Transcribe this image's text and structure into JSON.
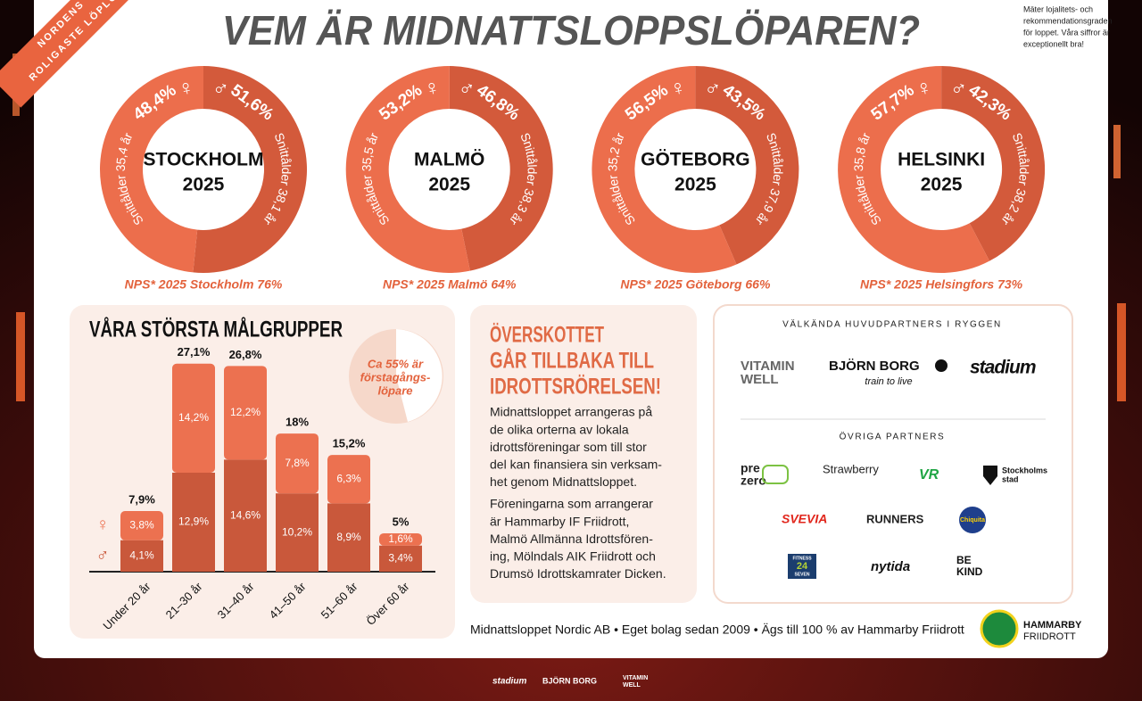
{
  "ribbon": [
    "NORDENS",
    "ROLIGASTE LÖPLO"
  ],
  "header": {
    "title": "VEM ÄR MIDNATTSLOPPSLÖPAREN?",
    "note": [
      "Mäter lojalitets- och",
      "rekommendationsgraden",
      "för loppet. Våra siffror är",
      "exceptionellt bra!"
    ]
  },
  "chart_data": [
    {
      "type": "donut",
      "title": "STOCKHOLM",
      "subtitle": "2025",
      "categories": [
        "♀",
        "♂"
      ],
      "values": [
        48.4,
        51.6
      ],
      "value_labels": [
        "48,4%",
        "51,6%"
      ],
      "colors": [
        "#ec6e4c",
        "#d35a3b"
      ],
      "annotations": [
        "Snittålder 35,4 år",
        "Snittålder 38,1 år"
      ],
      "caption": "NPS* 2025 Stockholm 76%"
    },
    {
      "type": "donut",
      "title": "MALMÖ",
      "subtitle": "2025",
      "categories": [
        "♀",
        "♂"
      ],
      "values": [
        53.2,
        46.8
      ],
      "value_labels": [
        "53,2%",
        "46,8%"
      ],
      "colors": [
        "#ec6e4c",
        "#d35a3b"
      ],
      "annotations": [
        "Snittålder 35,5 år",
        "Snittålder 38,3 år"
      ],
      "caption": "NPS* 2025 Malmö 64%"
    },
    {
      "type": "donut",
      "title": "GÖTEBORG",
      "subtitle": "2025",
      "categories": [
        "♀",
        "♂"
      ],
      "values": [
        56.5,
        43.5
      ],
      "value_labels": [
        "56,5%",
        "43,5%"
      ],
      "colors": [
        "#ec6e4c",
        "#d35a3b"
      ],
      "annotations": [
        "Snittålder 35,2 år",
        "Snittålder 37,9 år"
      ],
      "caption": "NPS* 2025 Göteborg 66%"
    },
    {
      "type": "donut",
      "title": "HELSINKI",
      "subtitle": "2025",
      "categories": [
        "♀",
        "♂"
      ],
      "values": [
        57.7,
        42.3
      ],
      "value_labels": [
        "57,7%",
        "42,3%"
      ],
      "colors": [
        "#ec6e4c",
        "#d35a3b"
      ],
      "annotations": [
        "Snittålder 35,8 år",
        "Snittålder 38,2 år"
      ],
      "caption": "NPS* 2025 Helsingfors 73%"
    },
    {
      "type": "stacked-bar",
      "title": "VÅRA STÖRSTA MÅLGRUPPER",
      "categories": [
        "Under 20 år",
        "21–30 år",
        "31–40 år",
        "41–50 år",
        "51–60 år",
        "Över 60 år"
      ],
      "series": [
        {
          "name": "♂",
          "color": "#c9583b",
          "values": [
            4.1,
            12.9,
            14.6,
            10.2,
            8.9,
            3.4
          ],
          "value_labels": [
            "4,1%",
            "12,9%",
            "14,6%",
            "10,2%",
            "8,9%",
            "3,4%"
          ]
        },
        {
          "name": "♀",
          "color": "#ec7150",
          "values": [
            3.8,
            14.2,
            12.2,
            7.8,
            6.3,
            1.6
          ],
          "value_labels": [
            "3,8%",
            "14,2%",
            "12,2%",
            "7,8%",
            "6,3%",
            "1,6%"
          ]
        }
      ],
      "totals": [
        7.9,
        27.1,
        26.8,
        18,
        15.2,
        5
      ],
      "total_labels": [
        "7,9%",
        "27,1%",
        "26,8%",
        "18%",
        "15,2%",
        "5%"
      ],
      "ylim": [
        0,
        28
      ],
      "annotation": [
        "Ca 55% är",
        "förstagångs-",
        "löpare"
      ]
    }
  ],
  "info": {
    "heading": [
      "ÖVERSKOTTET",
      "GÅR TILLBAKA TILL",
      "IDROTTSRÖRELSEN!"
    ],
    "paragraphs": [
      [
        "Midnattsloppet arrangeras på",
        "de olika orterna av lokala",
        "idrottsföreningar som till stor",
        "del kan finansiera sin verksam-",
        "het genom Midnattsloppet."
      ],
      [
        "Föreningarna som arrangerar",
        "är Hammarby IF Friidrott,",
        "Malmö Allmänna Idrottsfören-",
        "ing, Mölndals AIK Friidrott och",
        "Drumsö Idrottskamrater Dicken."
      ]
    ]
  },
  "partners": {
    "main_heading": "VÄLKÄNDA HUVUDPARTNERS I RYGGEN",
    "main": [
      "VITAMIN",
      "WELL",
      "BJÖRN BORG",
      "train to live",
      "stadium"
    ],
    "other_heading": "ÖVRIGA PARTNERS",
    "other": [
      "pre",
      "zero",
      "Strawberry",
      "VR",
      "Stockholms",
      "stad",
      "SVEVIA",
      "RUNNERS",
      "Chiquita",
      "FITNESS",
      "24",
      "SEVEN",
      "nytida",
      "BE",
      "KIND"
    ]
  },
  "footer": {
    "text": "Midnattsloppet Nordic AB • Eget bolag sedan 2009 • Ägs till 100 % av Hammarby Friidrott",
    "org": [
      "HAMMARBY",
      "FRIIDROTT"
    ],
    "strip": [
      "stadium",
      "BJÖRN BORG",
      "VITAMIN",
      "WELL"
    ]
  }
}
